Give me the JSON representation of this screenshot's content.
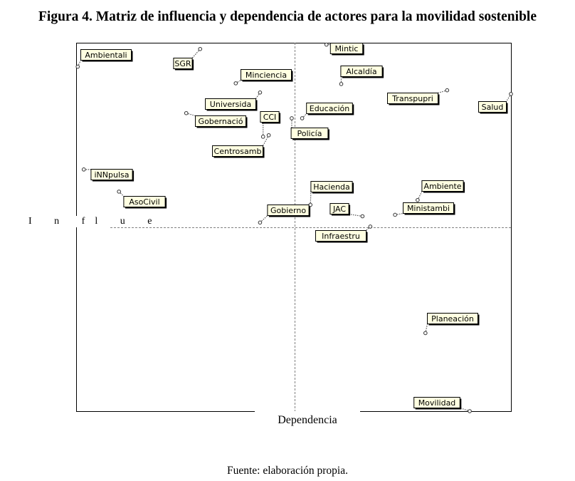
{
  "figure": {
    "title": "Figura 4. Matriz de influencia y dependencia de actores para la movilidad sostenible",
    "source": "Fuente: elaboración propia."
  },
  "chart_data": {
    "type": "scatter",
    "xlabel": "Dependencia",
    "ylabel": "I n fl u e",
    "xlim": [
      0,
      100
    ],
    "ylim": [
      0,
      100
    ],
    "grid": false,
    "x_split": 50.1,
    "y_split": 50.0,
    "points": [
      {
        "label": "Ambientali",
        "x": 0.2,
        "y": 93.5
      },
      {
        "label": "SGR",
        "x": 28.4,
        "y": 98.3
      },
      {
        "label": "Minciencia",
        "x": 36.6,
        "y": 89.0
      },
      {
        "label": "Universida",
        "x": 42.2,
        "y": 86.5
      },
      {
        "label": "Gobernació",
        "x": 25.2,
        "y": 80.9
      },
      {
        "label": "CCI",
        "x": 42.9,
        "y": 74.5
      },
      {
        "label": "Centrosamb",
        "x": 44.2,
        "y": 74.9
      },
      {
        "label": "Mintic",
        "x": 57.5,
        "y": 99.5
      },
      {
        "label": "Alcaldía",
        "x": 60.9,
        "y": 88.8
      },
      {
        "label": "Educación",
        "x": 51.9,
        "y": 79.5
      },
      {
        "label": "Policía",
        "x": 49.5,
        "y": 79.5
      },
      {
        "label": "Transpupri",
        "x": 85.3,
        "y": 87.1
      },
      {
        "label": "Salud",
        "x": 100.0,
        "y": 86.1
      },
      {
        "label": "iNNpulsa",
        "x": 1.6,
        "y": 65.6
      },
      {
        "label": "AsoCivil",
        "x": 9.7,
        "y": 59.6
      },
      {
        "label": "Hacienda",
        "x": 53.8,
        "y": 56.0
      },
      {
        "label": "Ambiente",
        "x": 78.5,
        "y": 57.3
      },
      {
        "label": "Ministambi",
        "x": 73.3,
        "y": 53.3
      },
      {
        "label": "Gobierno",
        "x": 42.2,
        "y": 51.2
      },
      {
        "label": "JAC",
        "x": 65.8,
        "y": 52.9
      },
      {
        "label": "Infraestru",
        "x": 67.6,
        "y": 50.1
      },
      {
        "label": "Planeación",
        "x": 80.3,
        "y": 21.2
      },
      {
        "label": "Movilidad",
        "x": 90.5,
        "y": 0.0
      }
    ]
  }
}
